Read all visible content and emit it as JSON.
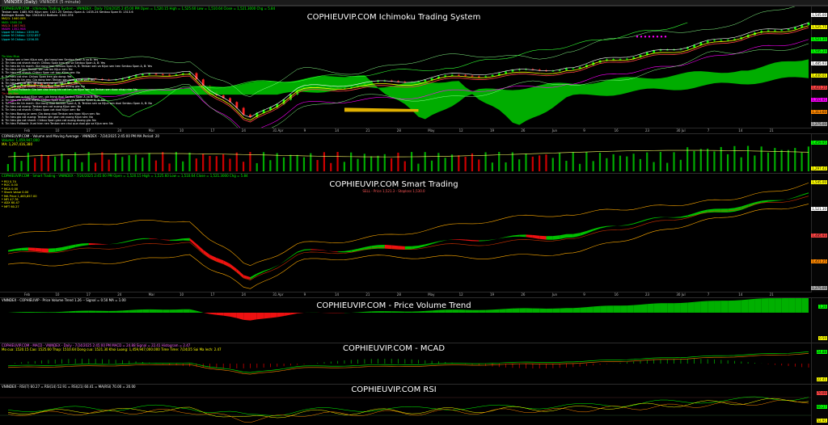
{
  "tabs": [
    {
      "label": "VNINDEX (Daily)"
    },
    {
      "label": "VNINDEX (5 minute)"
    }
  ],
  "ichimoku": {
    "header": "COPHIEUVIP.COM - Ichimoku Trading System - VNINDEX - Daily  7/24/2025 2:45:00 PM  Open = 1,520.15  High = 1,525.60  Low = 1,510.64  Close = 1,521.3000  Chg = 5.84",
    "watermark": "COPHIEUVIP.COM Ichimoku Trading System",
    "indicators": [
      {
        "text": "Tenkan sen: 1485.925   Kijun sen: 1421.25   Senkou Span A: 1435.24   Senkou Span B: 1313.6",
        "color": "#ffffff"
      },
      {
        "text": "Bollinger Bands Top: 1540.612  Bottom: 1341.374",
        "color": "#ffffff"
      },
      {
        "text": "MA21: 1440.005",
        "color": "#ffff00"
      },
      {
        "text": "MA5: 1505.24",
        "color": "#00ff00"
      },
      {
        "text": "MA13: 1467.941",
        "color": "#ff4444"
      },
      {
        "text": "MA89: 1352.908",
        "color": "#ff00ff"
      },
      {
        "text": "Upper M Chikou: 1359.99",
        "color": "#00ffff"
      },
      {
        "text": "Lower M Chikou: 1232.857",
        "color": "#00ffff"
      },
      {
        "text": "Upper M Chikou: 1256.35",
        "color": "#00ffff"
      }
    ],
    "signals_title": "Tin hieu Mua",
    "signals": [
      "1. Tenkan sen o tren Kijun sen, gia trong tren Senkou Span A va B: Yes",
      "2. Tin hieu cat nhanh manh: Chikou Span tren gia va Senkou Span A, B: Yes",
      "3. Tin hieu tin tin manh: Gia trong tren Senkou Span A, B. Tenkan sen va Kijun sen tren Senkou Span A, B: Yes",
      "4. Tin hieu cat len: Tenkan sen cat len Kijun sen: No",
      "5. Tin hieu cat nhanh: Chikou Span cat tren Kijun sen: No",
      "6. Tin hieu cat nhe: Chikou Span tren gia dong: Yes",
      "7. Tin hieu tin tin yeu: Gia dong tren Tenkan sen hoac Kijun sen: Yes",
      "8. Tin hieu gia cat len: Tenkan sen cat len Kijun sen: No",
      "9. Tin hieu gia cat nhanh: Chikou Span cat len duong gia: No",
      "10. Tin hieu Pullback: Gia lam dao trong khi cat len, va Kijun sen va Tenkan sen duoc nhap nhe: No"
    ],
    "sell_title": "Tin hieu Ban",
    "sell_signals": [
      "1. Tenkan sen o duoi Kijun sen, gia trong duoi Senkou Span A va B: No",
      "2. Tin hieu cat nhanh manh: Chikou Span duoi gia va Senkou Span A, B: No",
      "3. Tin hieu tin tin manh: Gia trong duoi Senkou Span A, B. Tenkan sen va Kijun sen duoi Senkou Span A, B: No",
      "4. Tin hieu cat xuong: Tenkan sen cat xuong Kijun sen: No",
      "5. Tin hieu cat nhanh: Chikou Span cat duoi Kijun sen: No",
      "6. Tin hieu Boong Le xem: Gia dong duoi Tenkan sen hoac Kijun sen: No",
      "7. Tin hieu gia cat xuong: Tenkan sen gian cat xuong Kijun sen: No",
      "8. Tin hieu gia cat nhanh: Chikou Span gian cat xuong duong gia: No",
      "9. Tin hieu Pullback: Xuat hien nen Tenkan sen chui qua duoi gia va Kijun sen: No"
    ],
    "price_labels": [
      {
        "text": "1,545.00",
        "color": "#ffffff"
      },
      {
        "text": "1,525.75",
        "color": "#ffff00"
      },
      {
        "text": "1,521.30",
        "color": "#00ff00"
      },
      {
        "text": "1,505.24",
        "color": "#00ff00"
      },
      {
        "text": "1,485.93",
        "color": "#ffffff"
      },
      {
        "text": "1,440.01",
        "color": "#ffff00"
      },
      {
        "text": "1,421.25",
        "color": "#ff4444"
      },
      {
        "text": "1,352.91",
        "color": "#ff00ff"
      },
      {
        "text": "1,313.60",
        "color": "#ff8800"
      },
      {
        "text": "1,275.00",
        "color": "#aaaaaa"
      }
    ]
  },
  "dates": [
    "Feb",
    "10",
    "17",
    "24",
    "Mar",
    "10",
    "17",
    "24",
    "31 Apr",
    "9",
    "14",
    "21",
    "28",
    "May",
    "12",
    "19",
    "26",
    "Jun",
    "9",
    "16",
    "23",
    "30 Jul",
    "7",
    "14",
    "21"
  ],
  "volume": {
    "header": "COPHIEUVIP.COM - Volume and Moving Average - VNINDEX - 7/24/2025 2:45:00 PM  MA Period: 20",
    "line2": "Volume: 1,459,947,000",
    "line3": "MA: 1,297,416,380",
    "price_labels": [
      {
        "text": "1,459.95",
        "color": "#00ff00"
      },
      {
        "text": "1,297.42",
        "color": "#ffff00"
      }
    ]
  },
  "smart": {
    "header": "COPHIEUVIP.COM - Smart Trading - VNINDEX - 7/24/2025 2:45:00 PM  Open = 1,520.15  High = 1,525.60  Low = 1,510.64  Close = 1,521.3000  Chg = 5.84",
    "watermark": "COPHIEUVIP.COM Smart Trading",
    "subtitle": "SELL - Price 1,521.3 - Stoploss 1,530.0",
    "values": [
      {
        "text": "* RSI     0.74",
        "color": "#ffff00"
      },
      {
        "text": "* ROC     0.00",
        "color": "#ffff00"
      },
      {
        "text": "* MCA     0.00",
        "color": "#ffff00"
      },
      {
        "text": "* Stoch Value   0.00",
        "color": "#ffff00"
      },
      {
        "text": "* MA Price  1,463,857.00",
        "color": "#ffff00"
      },
      {
        "text": "* MFI     47.76",
        "color": "#ffff00"
      },
      {
        "text": "* ADX     60.47",
        "color": "#ffff00"
      },
      {
        "text": "* MFT     60.27",
        "color": "#ffff00"
      }
    ],
    "price_labels": [
      {
        "text": "1,545.00",
        "color": "#ffff00"
      },
      {
        "text": "1,521.30",
        "color": "#ffffff"
      },
      {
        "text": "1,485.93",
        "color": "#ff4444"
      },
      {
        "text": "1,421.25",
        "color": "#ff8800"
      },
      {
        "text": "1,275.00",
        "color": "#aaaaaa"
      }
    ]
  },
  "pvt": {
    "header": "VNINDEX - COPHIEUVIP - Price Volume Trend  1.26   --  Signal = 0.50  MA = 1.00",
    "watermark": "COPHIEUVIP.COM - Price Volume Trend",
    "price_labels": [
      {
        "text": "1.26",
        "color": "#00ff00"
      },
      {
        "text": "0.50",
        "color": "#ffff00"
      }
    ]
  },
  "macd": {
    "header": "COPHIEUVIP.COM - MACD - VNINDEX - Daily - 7/24/2025 2:45:00 PM  MACD = 24.88  Signal = 22.41  Histogram = 2.47",
    "line2": "Mo cua: 1520.15  Cao: 1525.60  Thap: 1510.64  Dong cua: 1521.30  Khoi Luong: 1,459,947,000.000  Time Time: 7/24/25  Sai Ma lech: 2.47",
    "watermark": "COPHIEUVIP.COM - MCAD",
    "price_labels": [
      {
        "text": "24.88",
        "color": "#00ff00"
      },
      {
        "text": "22.41",
        "color": "#ffff00"
      }
    ]
  },
  "rsi": {
    "header": "VNINDEX - RSI(7) 60.27  =  RSI(14) 52.91  =  RSI(21) 60.41  =  MA(RSI) 70.00  =  20.00",
    "watermark": "COPHIEUVIP.COM RSI",
    "price_labels": [
      {
        "text": "70.00",
        "color": "#ff4444"
      },
      {
        "text": "60.27",
        "color": "#00ff00"
      },
      {
        "text": "52.91",
        "color": "#ffff00"
      }
    ]
  }
}
